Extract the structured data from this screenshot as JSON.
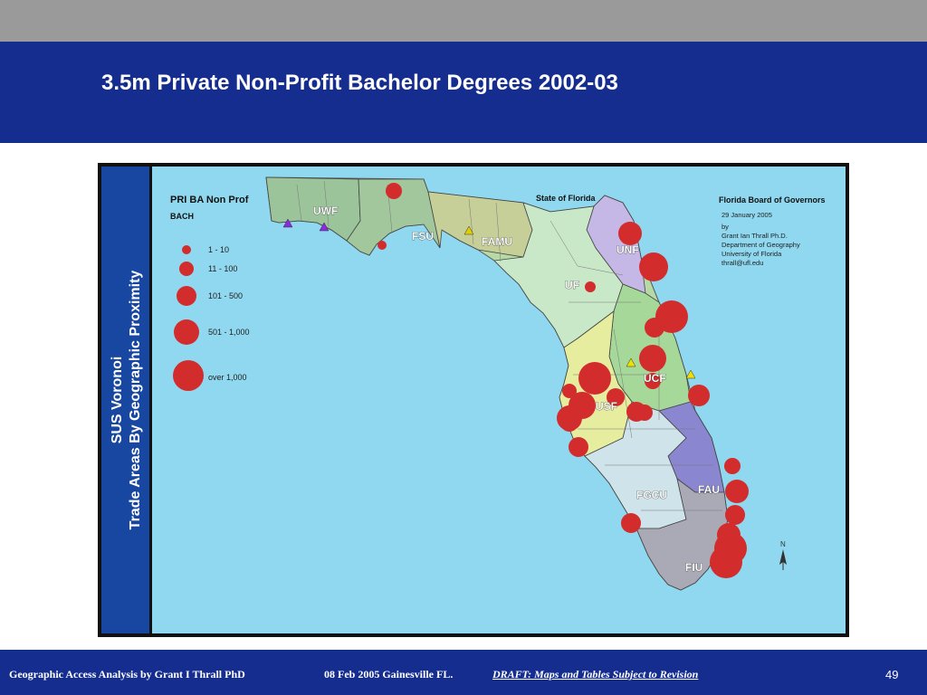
{
  "slide": {
    "title": "3.5m Private Non-Profit Bachelor Degrees 2002-03",
    "page_number": "49"
  },
  "side_panel": {
    "line1": "SUS Voronoi",
    "line2": "Trade Areas By Geographic Proximity"
  },
  "map": {
    "state_label": "State of Florida",
    "legend": {
      "title": "PRI BA Non Prof",
      "subtitle": "BACH",
      "classes": [
        {
          "label": "1 - 10"
        },
        {
          "label": "11 - 100"
        },
        {
          "label": "101 - 500"
        },
        {
          "label": "501 - 1,000"
        },
        {
          "label": "over 1,000"
        }
      ]
    },
    "info": {
      "title": "Florida Board of Governors",
      "date": "29 January 2005",
      "by": "by",
      "author": "Grant Ian Thrall Ph.D.",
      "dept": "Department of Geography",
      "univ": "University of Florida",
      "email": "thrall@ufl.edu"
    },
    "universities": [
      "UWF",
      "FSU",
      "FAMU",
      "UNF",
      "UF",
      "UCF",
      "USF",
      "FAU",
      "FGCU",
      "FIU"
    ],
    "north_arrow": "N",
    "colors": {
      "water": "#8fd8ef",
      "dot": "#d32c2c",
      "side_panel": "#1747a0",
      "header": "#152d8e"
    }
  },
  "footer": {
    "author": "Geographic Access Analysis by Grant I Thrall PhD",
    "date_place": "08 Feb 2005  Gainesville FL.",
    "draft": "DRAFT:  Maps and Tables Subject to Revision"
  }
}
